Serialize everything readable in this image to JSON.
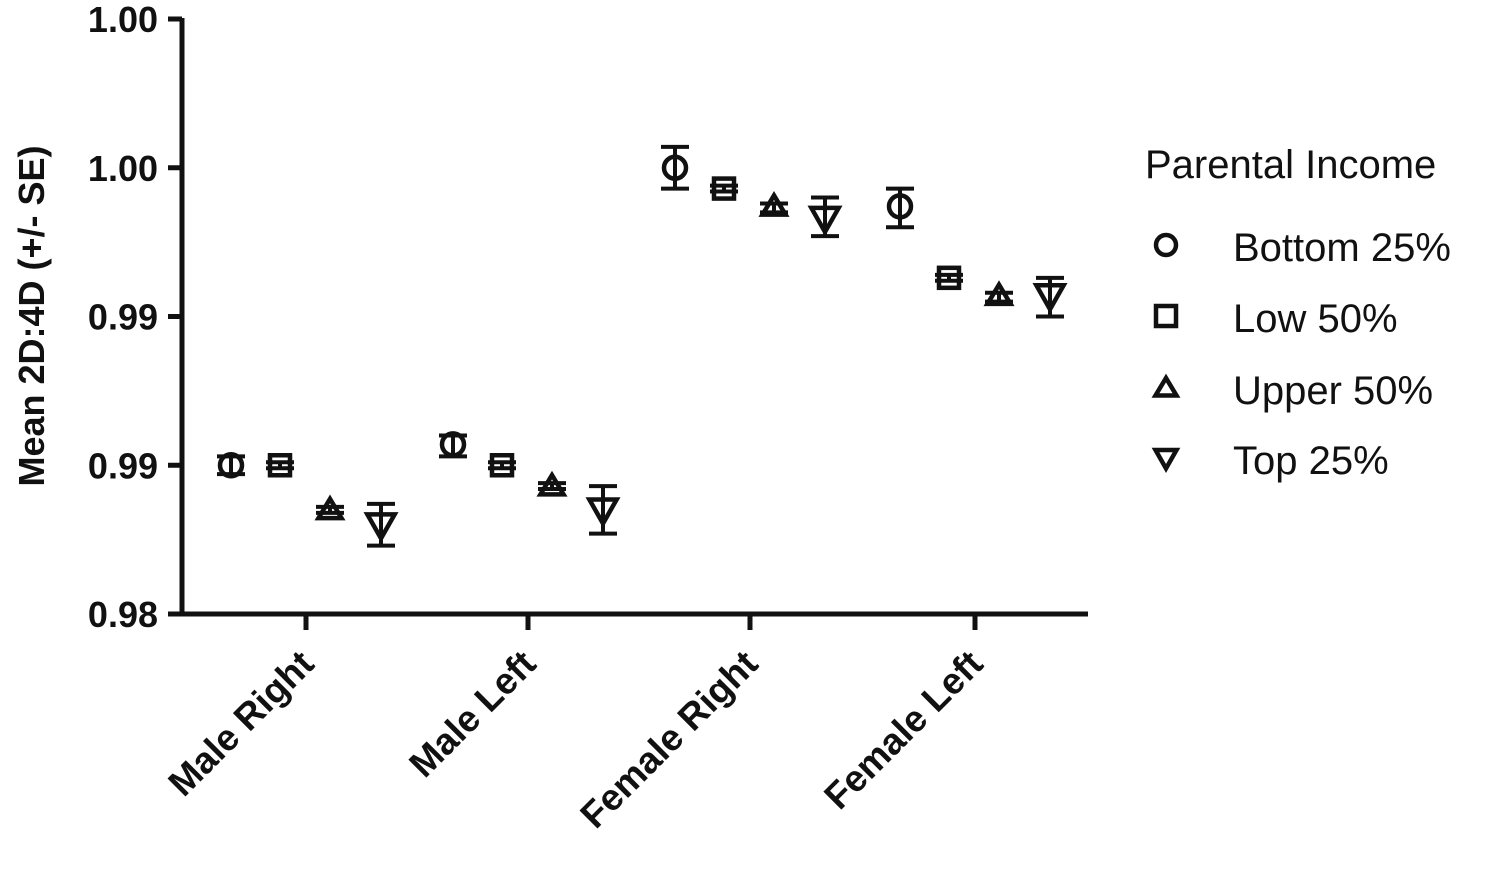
{
  "chart_data": {
    "type": "scatter",
    "title": "",
    "xlabel": "",
    "ylabel": "Mean 2D:4D (+/- SE)",
    "ylim": [
      0.98,
      1.0
    ],
    "yticks": [
      1.0,
      0.995,
      0.99,
      0.985,
      0.98
    ],
    "ytick_labels": [
      "1.00",
      "1.00",
      "0.99",
      "0.99",
      "0.98"
    ],
    "categories": [
      "Male Right",
      "Male Left",
      "Female Right",
      "Female Left"
    ],
    "legend_title": "Parental Income",
    "legend_position": "right",
    "grid": false,
    "error_bars": "SE",
    "series": [
      {
        "name": "Bottom 25%",
        "marker": "circle",
        "values": [
          0.985,
          0.9857,
          0.995,
          0.9937
        ],
        "se_low": [
          0.9847,
          0.9853,
          0.9943,
          0.993
        ],
        "se_high": [
          0.9853,
          0.986,
          0.9957,
          0.9943
        ]
      },
      {
        "name": "Low 50%",
        "marker": "square",
        "values": [
          0.985,
          0.985,
          0.9943,
          0.9913
        ],
        "se_low": [
          0.9849,
          0.9849,
          0.9942,
          0.9912
        ],
        "se_high": [
          0.9851,
          0.9851,
          0.9944,
          0.9914
        ]
      },
      {
        "name": "Upper 50%",
        "marker": "triangle-up",
        "values": [
          0.9835,
          0.9843,
          0.9937,
          0.9907
        ],
        "se_low": [
          0.9834,
          0.9842,
          0.9935,
          0.9905
        ],
        "se_high": [
          0.9836,
          0.9844,
          0.9938,
          0.9908
        ]
      },
      {
        "name": "Top 25%",
        "marker": "triangle-down",
        "values": [
          0.983,
          0.9835,
          0.9933,
          0.9907
        ],
        "se_low": [
          0.9823,
          0.9827,
          0.9927,
          0.99
        ],
        "se_high": [
          0.9837,
          0.9843,
          0.994,
          0.9913
        ]
      }
    ]
  }
}
